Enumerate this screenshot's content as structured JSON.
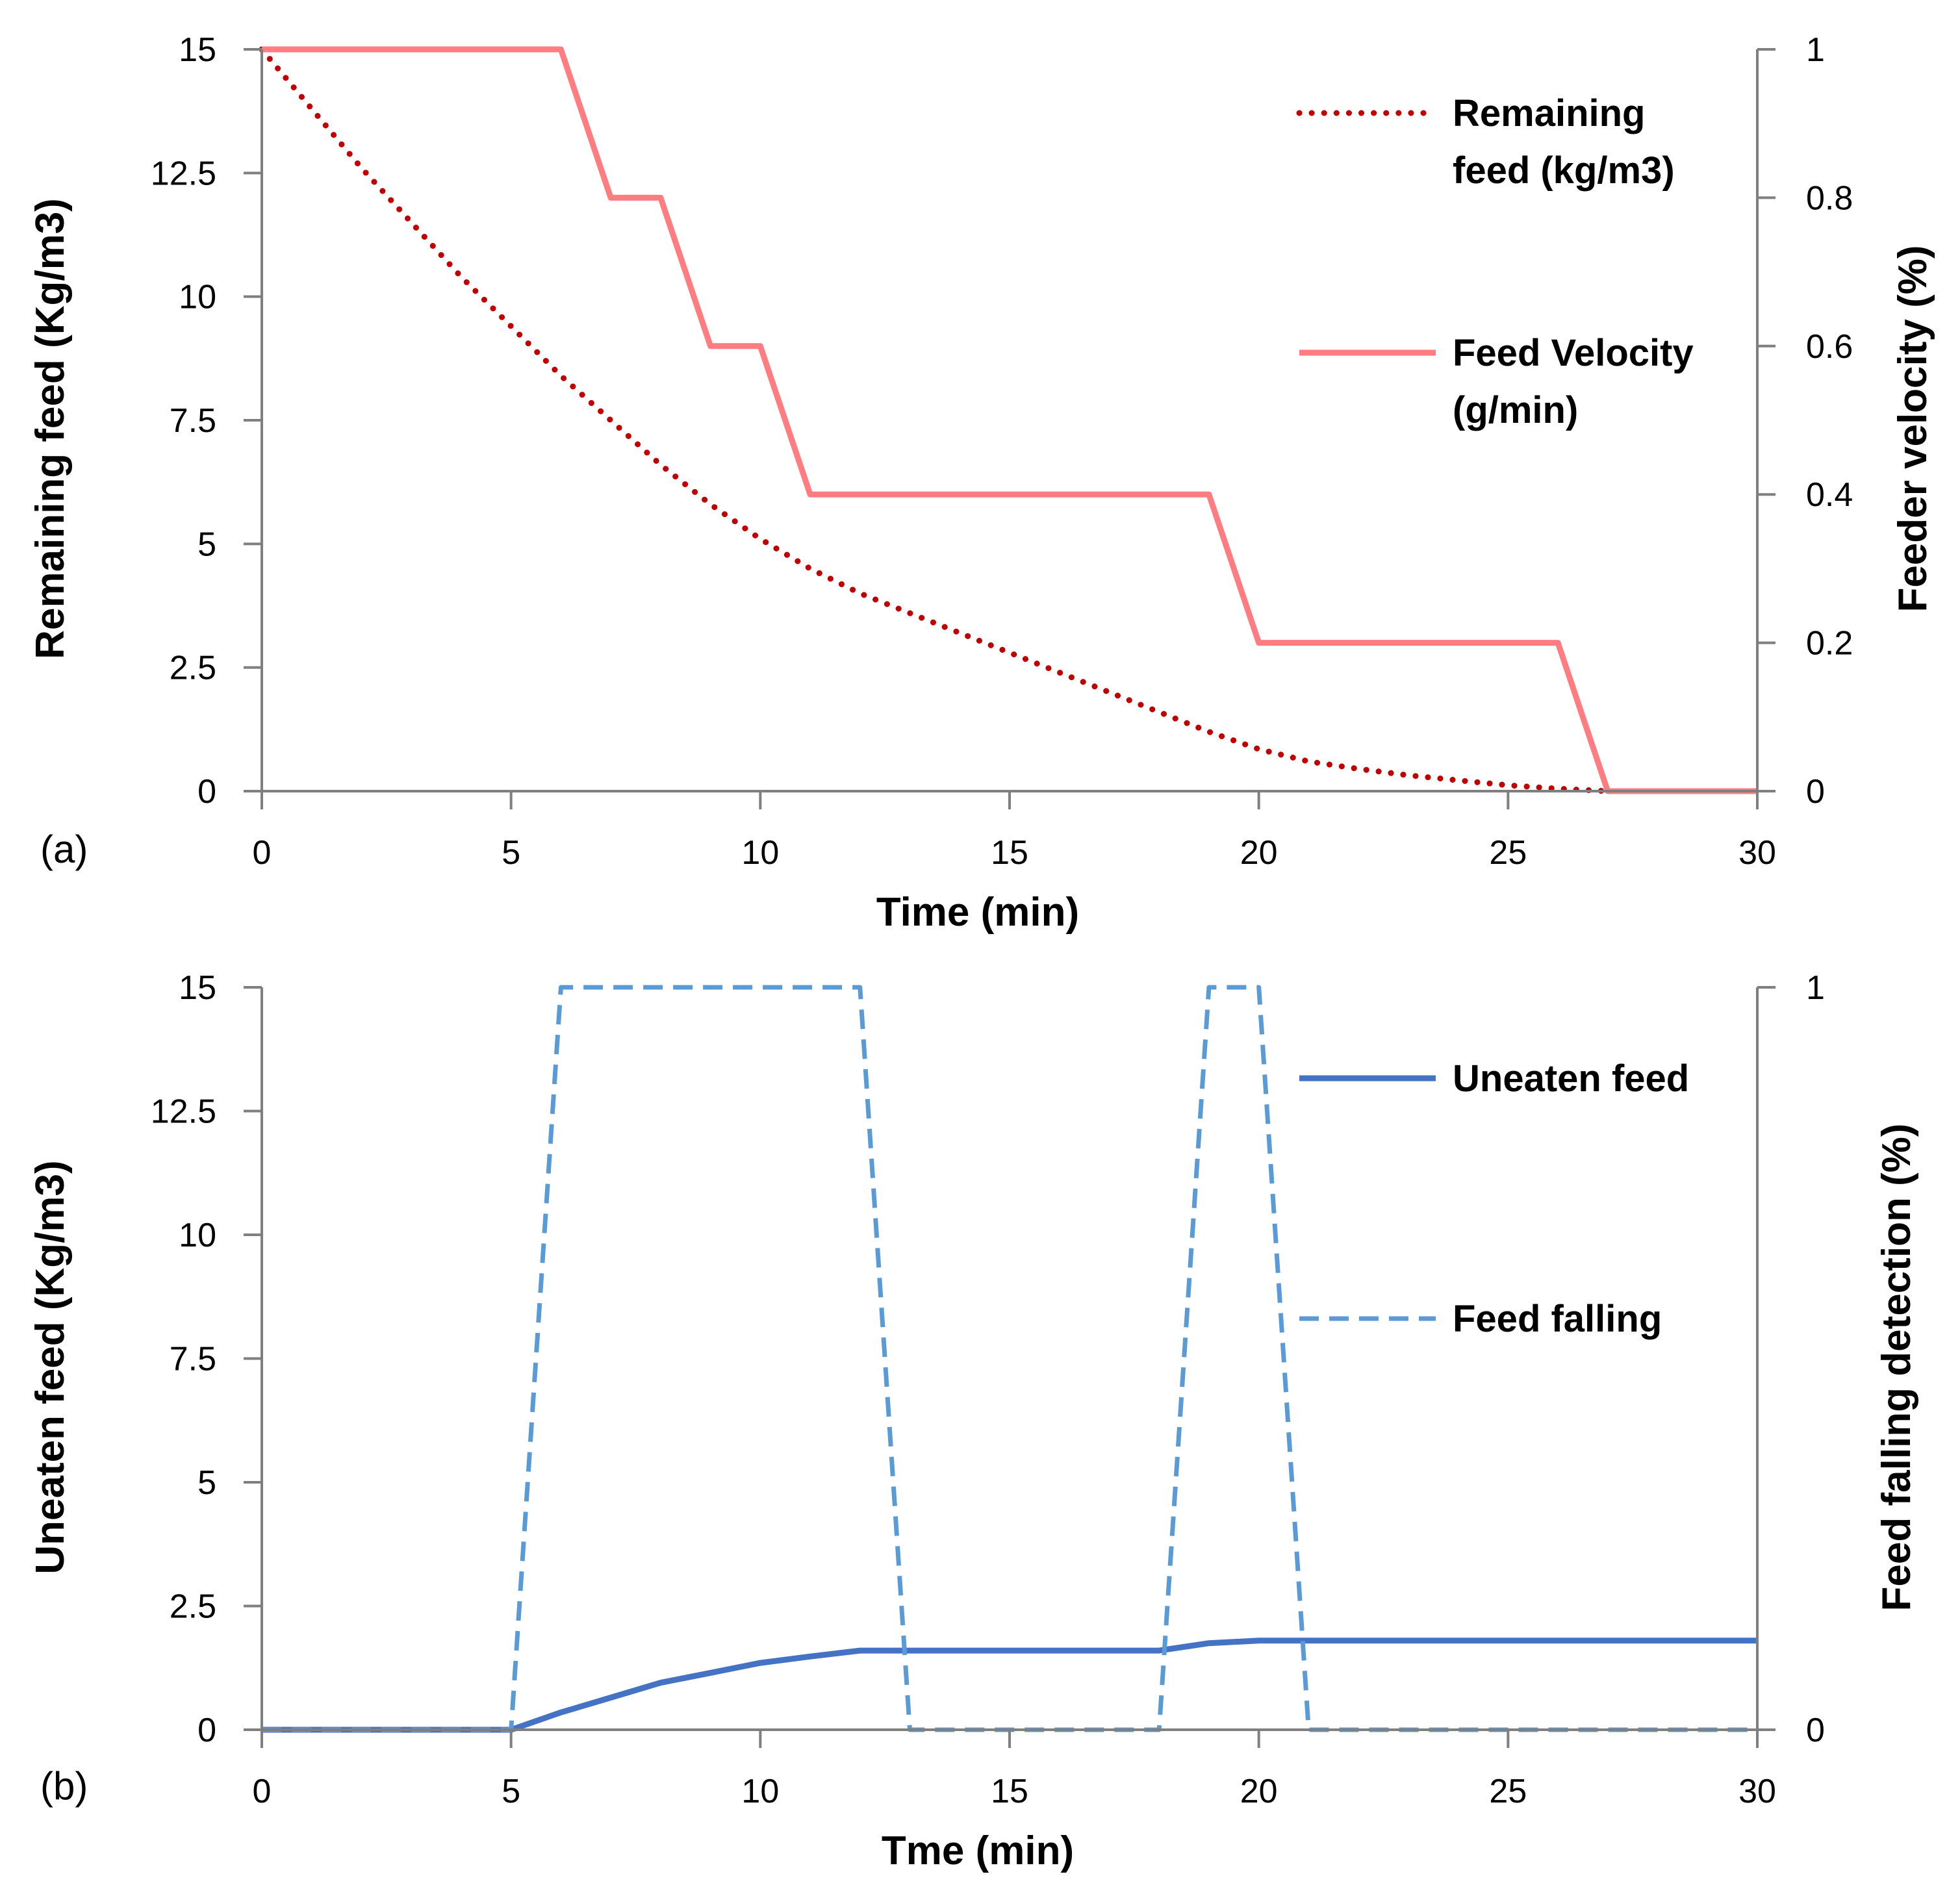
{
  "colors": {
    "remaining_feed": "#C00000",
    "feed_velocity": "#FF7C80",
    "uneaten_feed": "#4472C4",
    "feed_falling": "#5B9BD5",
    "axis": "#7F7F7F"
  },
  "chart_data": [
    {
      "type": "line",
      "panel_label": "(a)",
      "xlabel": "Time (min)",
      "ylabel_left": "Remaining feed (Kg/m3)",
      "ylabel_right": "Feeder velocity (%)",
      "xlim": [
        0,
        30
      ],
      "ylim_left": [
        0,
        15
      ],
      "ylim_right": [
        0,
        1
      ],
      "x_ticks": [
        "0",
        "5",
        "10",
        "15",
        "20",
        "25",
        "30"
      ],
      "y_ticks_left": [
        "0",
        "2.5",
        "5",
        "7.5",
        "10",
        "12.5",
        "15"
      ],
      "y_ticks_right": [
        "0",
        "0.2",
        "0.4",
        "0.6",
        "0.8",
        "1"
      ],
      "legend": [
        {
          "lines": [
            "Remaining",
            "feed (kg/m3)"
          ],
          "series": "remaining"
        },
        {
          "lines": [
            "Feed Velocity",
            "(g/min)"
          ],
          "series": "velocity"
        }
      ],
      "series": [
        {
          "name": "Remaining feed (kg/m3)",
          "axis": "left",
          "style": "dotted",
          "x": [
            0,
            1,
            2,
            3,
            4,
            5,
            6,
            7,
            8,
            9,
            10,
            11,
            12,
            13,
            14,
            15,
            16,
            17,
            18,
            19,
            20,
            21,
            22,
            23,
            24,
            25,
            26,
            27
          ],
          "values": [
            15,
            13.8,
            12.6,
            11.5,
            10.4,
            9.4,
            8.4,
            7.5,
            6.6,
            5.8,
            5.1,
            4.5,
            4.0,
            3.6,
            3.2,
            2.8,
            2.4,
            2.0,
            1.6,
            1.2,
            0.85,
            0.6,
            0.45,
            0.32,
            0.22,
            0.12,
            0.05,
            0
          ]
        },
        {
          "name": "Feed Velocity (g/min)",
          "axis": "right",
          "style": "solid",
          "x": [
            0,
            6,
            7,
            8,
            9,
            10,
            11,
            19,
            20,
            26,
            27,
            30
          ],
          "values": [
            1,
            1,
            0.8,
            0.8,
            0.6,
            0.6,
            0.4,
            0.4,
            0.2,
            0.2,
            0,
            0
          ]
        }
      ]
    },
    {
      "type": "line",
      "panel_label": "(b)",
      "xlabel": "Tme (min)",
      "ylabel_left": "Uneaten feed (Kg/m3)",
      "ylabel_right": "Feed falling detection (%)",
      "xlim": [
        0,
        30
      ],
      "ylim_left": [
        0,
        15
      ],
      "ylim_right": [
        0,
        1
      ],
      "x_ticks": [
        "0",
        "5",
        "10",
        "15",
        "20",
        "25",
        "30"
      ],
      "y_ticks_left": [
        "0",
        "2.5",
        "5",
        "7.5",
        "10",
        "12.5",
        "15"
      ],
      "y_ticks_right": [
        "0",
        "1"
      ],
      "legend": [
        {
          "lines": [
            "Uneaten feed"
          ],
          "series": "uneaten"
        },
        {
          "lines": [
            "Feed falling"
          ],
          "series": "falling"
        }
      ],
      "series": [
        {
          "name": "Uneaten feed",
          "axis": "left",
          "style": "solid",
          "x": [
            0,
            5,
            6,
            7,
            8,
            9,
            10,
            11,
            12,
            18,
            19,
            20,
            30
          ],
          "values": [
            0,
            0,
            0.35,
            0.65,
            0.95,
            1.15,
            1.35,
            1.48,
            1.6,
            1.6,
            1.75,
            1.8,
            1.8
          ]
        },
        {
          "name": "Feed falling",
          "axis": "right",
          "style": "dashed",
          "x": [
            0,
            5,
            6,
            12,
            13,
            18,
            19,
            20,
            21,
            30
          ],
          "values": [
            0,
            0,
            1,
            1,
            0,
            0,
            1,
            1,
            0,
            0
          ]
        }
      ]
    }
  ]
}
